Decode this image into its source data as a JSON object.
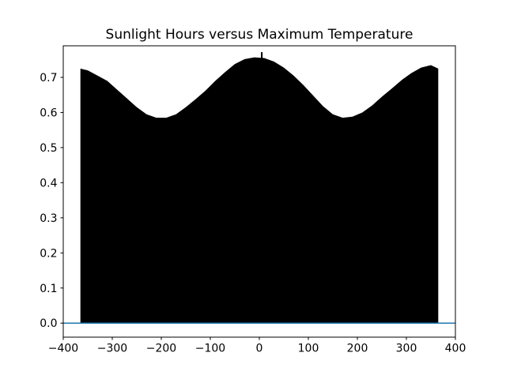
{
  "chart_data": {
    "type": "area",
    "title": "Sunlight Hours versus Maximum Temperature",
    "xlabel": "",
    "ylabel": "",
    "xlim": [
      -400,
      400
    ],
    "ylim": [
      -0.04,
      0.79
    ],
    "grid": false,
    "legend": "none",
    "x_ticks": [
      -400,
      -300,
      -200,
      -100,
      0,
      100,
      200,
      300,
      400
    ],
    "x_tick_labels": [
      "−400",
      "−300",
      "−200",
      "−100",
      "0",
      "100",
      "200",
      "300",
      "400"
    ],
    "y_ticks": [
      0.0,
      0.1,
      0.2,
      0.3,
      0.4,
      0.5,
      0.6,
      0.7
    ],
    "y_tick_labels": [
      "0.0",
      "0.1",
      "0.2",
      "0.3",
      "0.4",
      "0.5",
      "0.6",
      "0.7"
    ],
    "series": [
      {
        "name": "filled-black-envelope",
        "kind": "filled-area",
        "color": "#000000",
        "baseline": 0,
        "x": [
          -365,
          -350,
          -330,
          -310,
          -290,
          -270,
          -250,
          -230,
          -210,
          -190,
          -170,
          -150,
          -130,
          -110,
          -90,
          -70,
          -50,
          -30,
          -10,
          10,
          30,
          50,
          70,
          90,
          110,
          130,
          150,
          170,
          190,
          210,
          230,
          250,
          270,
          290,
          310,
          330,
          350,
          365
        ],
        "y_top": [
          0.725,
          0.72,
          0.705,
          0.69,
          0.665,
          0.64,
          0.615,
          0.595,
          0.585,
          0.585,
          0.595,
          0.615,
          0.638,
          0.662,
          0.69,
          0.715,
          0.738,
          0.752,
          0.757,
          0.755,
          0.745,
          0.728,
          0.705,
          0.678,
          0.648,
          0.618,
          0.595,
          0.585,
          0.588,
          0.6,
          0.62,
          0.645,
          0.668,
          0.692,
          0.712,
          0.728,
          0.735,
          0.725
        ]
      },
      {
        "name": "zero-baseline-line",
        "kind": "line",
        "color": "#1f77b4",
        "x": [
          -400,
          400
        ],
        "y": [
          0,
          0
        ]
      }
    ],
    "spike_mark": {
      "x": 5,
      "y_from": 0.755,
      "y_to": 0.772,
      "color": "#000000"
    }
  }
}
